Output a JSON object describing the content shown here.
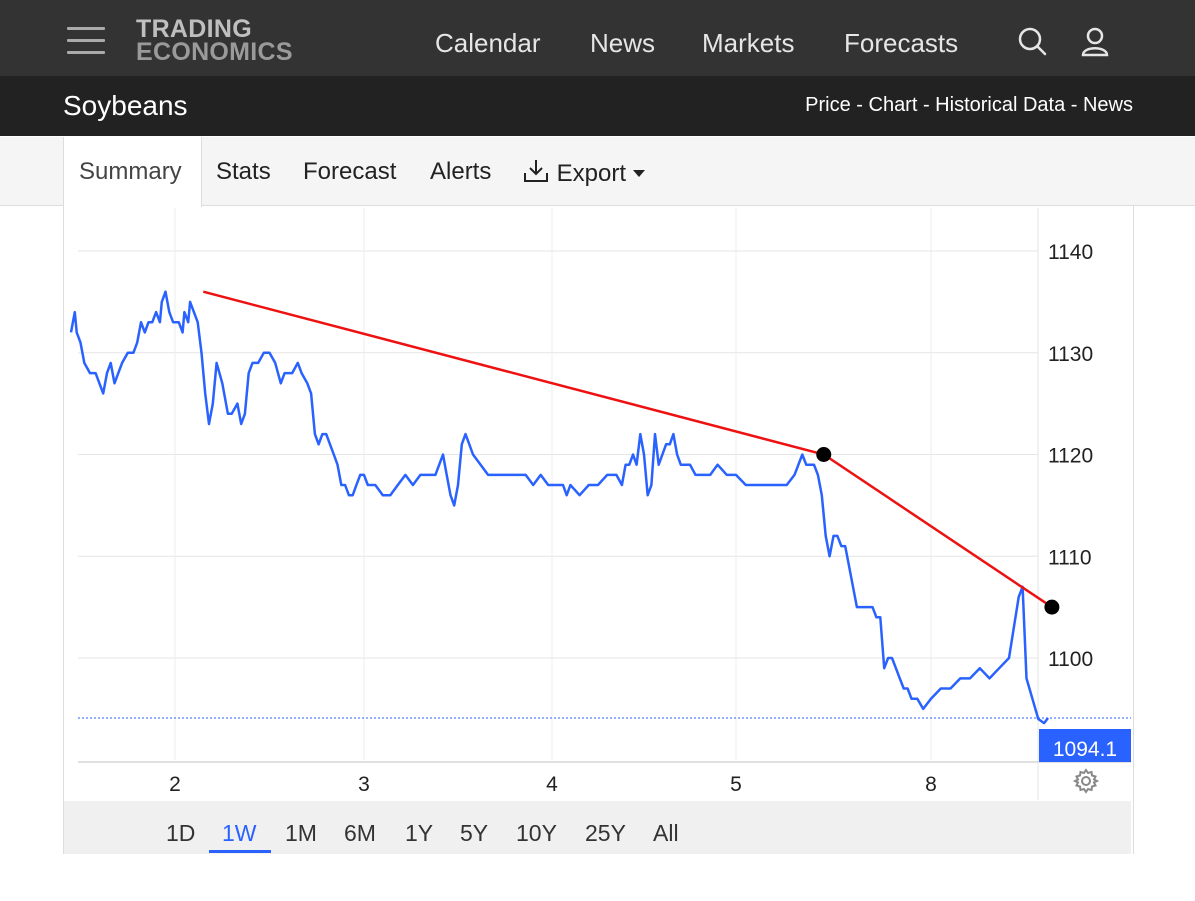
{
  "header": {
    "logo_line1": "TRADING",
    "logo_line2": "ECONOMICS",
    "nav": [
      "Calendar",
      "News",
      "Markets",
      "Forecasts"
    ],
    "icons": [
      "hamburger-menu-icon",
      "search-icon",
      "user-icon"
    ]
  },
  "subheader": {
    "title": "Soybeans",
    "links": "Price - Chart - Historical Data - News"
  },
  "tabs": [
    "Summary",
    "Stats",
    "Forecast",
    "Alerts",
    "Export"
  ],
  "tabs_active": "Summary",
  "chart": {
    "y_ticks": [
      "1140",
      "1130",
      "1120",
      "1110",
      "1100"
    ],
    "x_ticks": [
      "2",
      "3",
      "4",
      "5",
      "8"
    ],
    "last_price_label": "1094.1",
    "line_color": "#2962ff",
    "trend_color": "#ee1111"
  },
  "chart_data": {
    "type": "line",
    "ylim": [
      1090,
      1146
    ],
    "x_range": [
      1.45,
      8.55
    ],
    "grid": true,
    "series": [
      {
        "values": [
          [
            1.45,
            1132
          ],
          [
            1.47,
            1134
          ],
          [
            1.48,
            1132
          ],
          [
            1.5,
            1131
          ],
          [
            1.52,
            1129
          ],
          [
            1.55,
            1128
          ],
          [
            1.58,
            1128
          ],
          [
            1.6,
            1127
          ],
          [
            1.62,
            1126
          ],
          [
            1.64,
            1128
          ],
          [
            1.66,
            1129
          ],
          [
            1.68,
            1127
          ],
          [
            1.7,
            1128
          ],
          [
            1.72,
            1129
          ],
          [
            1.75,
            1130
          ],
          [
            1.78,
            1130
          ],
          [
            1.8,
            1131
          ],
          [
            1.82,
            1133
          ],
          [
            1.84,
            1132
          ],
          [
            1.86,
            1133
          ],
          [
            1.88,
            1133
          ],
          [
            1.9,
            1134
          ],
          [
            1.92,
            1133
          ],
          [
            1.93,
            1135
          ],
          [
            1.95,
            1136
          ],
          [
            1.97,
            1134
          ],
          [
            1.99,
            1133
          ],
          [
            2.02,
            1133
          ],
          [
            2.04,
            1132
          ],
          [
            2.05,
            1134
          ],
          [
            2.07,
            1133
          ],
          [
            2.08,
            1135
          ],
          [
            2.1,
            1134
          ],
          [
            2.12,
            1133
          ],
          [
            2.14,
            1130
          ],
          [
            2.16,
            1126
          ],
          [
            2.18,
            1123
          ],
          [
            2.2,
            1125
          ],
          [
            2.22,
            1129
          ],
          [
            2.25,
            1127
          ],
          [
            2.28,
            1124
          ],
          [
            2.3,
            1124
          ],
          [
            2.33,
            1125
          ],
          [
            2.35,
            1123
          ],
          [
            2.37,
            1124
          ],
          [
            2.39,
            1128
          ],
          [
            2.41,
            1129
          ],
          [
            2.44,
            1129
          ],
          [
            2.47,
            1130
          ],
          [
            2.5,
            1130
          ],
          [
            2.53,
            1129
          ],
          [
            2.56,
            1127
          ],
          [
            2.58,
            1128
          ],
          [
            2.6,
            1128
          ],
          [
            2.62,
            1128
          ],
          [
            2.65,
            1129
          ],
          [
            2.67,
            1128
          ],
          [
            2.7,
            1127
          ],
          [
            2.72,
            1126
          ],
          [
            2.74,
            1122
          ],
          [
            2.76,
            1121
          ],
          [
            2.78,
            1122
          ],
          [
            2.8,
            1122
          ],
          [
            2.82,
            1121
          ],
          [
            2.84,
            1120
          ],
          [
            2.86,
            1119
          ],
          [
            2.88,
            1117
          ],
          [
            2.9,
            1117
          ],
          [
            2.92,
            1116
          ],
          [
            2.94,
            1116
          ],
          [
            2.96,
            1117
          ],
          [
            2.98,
            1118
          ],
          [
            3.0,
            1118
          ],
          [
            3.02,
            1117
          ],
          [
            3.04,
            1117
          ],
          [
            3.06,
            1117
          ],
          [
            3.1,
            1116
          ],
          [
            3.14,
            1116
          ],
          [
            3.18,
            1117
          ],
          [
            3.22,
            1118
          ],
          [
            3.26,
            1117
          ],
          [
            3.3,
            1118
          ],
          [
            3.34,
            1118
          ],
          [
            3.38,
            1118
          ],
          [
            3.42,
            1120
          ],
          [
            3.44,
            1118
          ],
          [
            3.46,
            1116
          ],
          [
            3.48,
            1115
          ],
          [
            3.5,
            1117
          ],
          [
            3.52,
            1121
          ],
          [
            3.54,
            1122
          ],
          [
            3.56,
            1121
          ],
          [
            3.58,
            1120
          ],
          [
            3.62,
            1119
          ],
          [
            3.66,
            1118
          ],
          [
            3.7,
            1118
          ],
          [
            3.74,
            1118
          ],
          [
            3.78,
            1118
          ],
          [
            3.82,
            1118
          ],
          [
            3.86,
            1118
          ],
          [
            3.9,
            1117
          ],
          [
            3.94,
            1118
          ],
          [
            3.98,
            1117
          ],
          [
            4.02,
            1117
          ],
          [
            4.06,
            1117
          ],
          [
            4.08,
            1116
          ],
          [
            4.1,
            1117
          ],
          [
            4.15,
            1116
          ],
          [
            4.2,
            1117
          ],
          [
            4.25,
            1117
          ],
          [
            4.3,
            1118
          ],
          [
            4.35,
            1118
          ],
          [
            4.38,
            1117
          ],
          [
            4.4,
            1119
          ],
          [
            4.42,
            1119
          ],
          [
            4.44,
            1120
          ],
          [
            4.46,
            1119
          ],
          [
            4.48,
            1122
          ],
          [
            4.5,
            1120
          ],
          [
            4.52,
            1116
          ],
          [
            4.54,
            1117
          ],
          [
            4.56,
            1122
          ],
          [
            4.58,
            1119
          ],
          [
            4.6,
            1120
          ],
          [
            4.62,
            1121
          ],
          [
            4.64,
            1121
          ],
          [
            4.66,
            1122
          ],
          [
            4.68,
            1120
          ],
          [
            4.7,
            1119
          ],
          [
            4.72,
            1119
          ],
          [
            4.75,
            1119
          ],
          [
            4.78,
            1118
          ],
          [
            4.82,
            1118
          ],
          [
            4.86,
            1118
          ],
          [
            4.9,
            1119
          ],
          [
            4.95,
            1118
          ],
          [
            5.0,
            1118
          ],
          [
            5.05,
            1117
          ],
          [
            5.1,
            1117
          ],
          [
            5.14,
            1117
          ],
          [
            5.18,
            1117
          ],
          [
            5.22,
            1117
          ],
          [
            5.26,
            1117
          ],
          [
            5.3,
            1118
          ],
          [
            5.32,
            1119
          ],
          [
            5.34,
            1120
          ],
          [
            5.36,
            1119
          ],
          [
            5.38,
            1119
          ],
          [
            5.4,
            1119
          ],
          [
            5.42,
            1118
          ],
          [
            5.44,
            1116
          ],
          [
            5.46,
            1112
          ],
          [
            5.48,
            1110
          ],
          [
            5.5,
            1112
          ],
          [
            5.52,
            1112
          ],
          [
            5.54,
            1111
          ],
          [
            5.56,
            1111
          ],
          [
            5.58,
            1109
          ],
          [
            5.6,
            1107
          ],
          [
            5.62,
            1105
          ],
          [
            5.64,
            1105
          ],
          [
            5.66,
            1105
          ],
          [
            5.68,
            1105
          ],
          [
            5.7,
            1105
          ],
          [
            5.72,
            1104
          ],
          [
            5.74,
            1104
          ],
          [
            5.76,
            1099
          ],
          [
            5.78,
            1100
          ],
          [
            5.8,
            1100
          ],
          [
            5.82,
            1099
          ],
          [
            5.84,
            1098
          ],
          [
            5.86,
            1097
          ],
          [
            5.88,
            1097
          ],
          [
            5.9,
            1096
          ],
          [
            5.93,
            1096
          ],
          [
            5.96,
            1095
          ],
          [
            6.0,
            1096
          ],
          [
            6.05,
            1097
          ],
          [
            6.1,
            1097
          ],
          [
            6.15,
            1098
          ],
          [
            6.2,
            1098
          ],
          [
            6.25,
            1099
          ],
          [
            6.3,
            1098
          ],
          [
            6.35,
            1099
          ],
          [
            6.4,
            1100
          ],
          [
            6.45,
            1106
          ],
          [
            6.47,
            1107
          ],
          [
            6.49,
            1098
          ],
          [
            6.52,
            1096
          ],
          [
            6.55,
            1094
          ],
          [
            6.58,
            1093.6
          ],
          [
            6.6,
            1094.1
          ]
        ]
      }
    ],
    "trendline": [
      [
        2.15,
        1136
      ],
      [
        5.45,
        1120
      ],
      [
        6.62,
        1105
      ]
    ],
    "last_price": 1094.1
  }
}
